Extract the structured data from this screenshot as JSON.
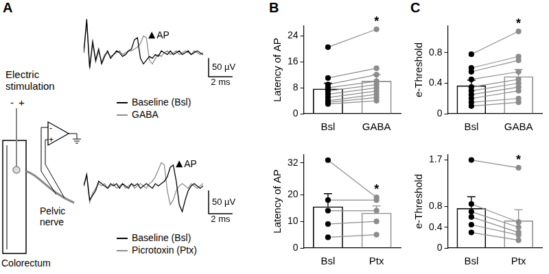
{
  "panel_labels": [
    "A",
    "B",
    "C"
  ],
  "diagram": {
    "stimulation_label": "Electric stimulation",
    "stimulation_polarity": [
      "-",
      "+"
    ],
    "amplifier_inputs": [
      "-",
      "+"
    ],
    "nerve_label": "Pelvic nerve",
    "organ_label": "Colorectum"
  },
  "chart_data": [
    {
      "type": "line",
      "x": [
        0,
        0.25,
        0.5,
        0.75,
        1,
        1.25,
        1.5,
        1.75,
        2,
        2.25,
        2.5,
        2.75,
        3,
        3.25,
        3.5,
        3.75,
        4,
        4.25,
        4.5,
        4.75,
        5,
        5.25,
        5.5,
        5.75,
        6,
        6.25,
        6.5,
        6.75,
        7,
        7.25,
        7.5,
        7.75,
        8,
        8.25,
        8.5,
        8.75,
        9,
        9.25,
        9.5,
        9.75,
        10
      ],
      "series": [
        {
          "name": "Baseline (Bsl)",
          "color": "#000000",
          "values": [
            0,
            90,
            -40,
            30,
            -20,
            10,
            -30,
            -10,
            5,
            -15,
            -5,
            5,
            0,
            -10,
            -5,
            5,
            10,
            35,
            40,
            -15,
            -30,
            -20,
            -10,
            -15,
            -5,
            -10,
            5,
            0,
            -5,
            5,
            -5,
            0,
            5,
            -5,
            0,
            5,
            -5,
            0,
            5,
            0,
            -5
          ]
        },
        {
          "name": "GABA",
          "color": "#8c8c8c",
          "values": [
            0,
            80,
            -45,
            25,
            -25,
            5,
            -25,
            -5,
            0,
            -10,
            -5,
            0,
            5,
            -5,
            0,
            5,
            5,
            10,
            15,
            25,
            45,
            40,
            -20,
            -30,
            -15,
            -5,
            -10,
            0,
            5,
            -5,
            0,
            5,
            -5,
            0,
            5,
            0,
            -5,
            5,
            0,
            -5,
            0
          ]
        }
      ],
      "xlim": [
        0,
        10
      ],
      "ylim": [
        -90,
        110
      ],
      "tick_labels": false,
      "grid": false,
      "annotations": [
        {
          "text": "AP",
          "x": 5.7,
          "y": 38
        }
      ],
      "scale_bar": {
        "x": 2,
        "x_label": "2 ms",
        "y": 50,
        "y_label": "50 µV"
      }
    },
    {
      "type": "line",
      "x": [
        0,
        0.25,
        0.5,
        0.75,
        1,
        1.25,
        1.5,
        1.75,
        2,
        2.25,
        2.5,
        2.75,
        3,
        3.25,
        3.5,
        3.75,
        4,
        4.25,
        4.5,
        4.75,
        5,
        5.25,
        5.5,
        5.75,
        6,
        6.25,
        6.5,
        6.75,
        7,
        7.25,
        7.5,
        7.75,
        8,
        8.25,
        8.5,
        8.75,
        9,
        9.25,
        9.5,
        9.75,
        10
      ],
      "series": [
        {
          "name": "Baseline (Bsl)",
          "color": "#000000",
          "values": [
            0,
            25,
            -30,
            -20,
            -10,
            10,
            5,
            0,
            -5,
            5,
            0,
            5,
            -5,
            5,
            0,
            -5,
            5,
            0,
            5,
            -5,
            0,
            5,
            0,
            -5,
            5,
            0,
            5,
            10,
            20,
            40,
            45,
            10,
            -40,
            -55,
            -30,
            -10,
            0,
            5,
            0,
            -5,
            0
          ]
        },
        {
          "name": "Picrotoxin (Ptx)",
          "color": "#8c8c8c",
          "values": [
            0,
            20,
            -35,
            -15,
            -5,
            5,
            0,
            5,
            -5,
            0,
            5,
            -5,
            0,
            5,
            -5,
            0,
            5,
            -5,
            0,
            5,
            0,
            -5,
            5,
            10,
            20,
            35,
            50,
            45,
            -10,
            -40,
            -30,
            -10,
            0,
            5,
            0,
            -5,
            5,
            0,
            -5,
            0,
            5
          ]
        }
      ],
      "xlim": [
        0,
        10
      ],
      "ylim": [
        -80,
        80
      ],
      "tick_labels": false,
      "grid": false,
      "annotations": [
        {
          "text": "AP",
          "x": 8.0,
          "y": 40
        }
      ],
      "scale_bar": {
        "x": 2,
        "x_label": "2 ms",
        "y": 50,
        "y_label": "50 µV"
      }
    },
    {
      "type": "bar",
      "y_label": "Latency of AP",
      "categories": [
        "Bsl",
        "GABA"
      ],
      "values": [
        7.7,
        10.1
      ],
      "errors": [
        1.7,
        2.0
      ],
      "paired_values": [
        [
          20.5,
          11,
          9,
          8,
          7,
          6,
          5,
          4,
          3.5,
          3
        ],
        [
          26,
          14,
          12,
          10,
          9,
          8,
          7,
          6,
          5,
          4
        ]
      ],
      "colors": [
        "#000000",
        "#8c8c8c"
      ],
      "ylim": [
        0,
        27
      ],
      "yticks": [
        0,
        8,
        16,
        24
      ],
      "grid": false,
      "annotations": [
        {
          "text": "*",
          "x": "GABA"
        }
      ]
    },
    {
      "type": "bar",
      "y_label": "Latency of AP",
      "categories": [
        "Bsl",
        "Ptx"
      ],
      "values": [
        15.6,
        13.2
      ],
      "errors": [
        4.8,
        2.6
      ],
      "paired_values": [
        [
          33,
          18,
          14,
          9,
          4
        ],
        [
          19,
          18,
          14,
          10,
          5
        ]
      ],
      "colors": [
        "#000000",
        "#8c8c8c"
      ],
      "ylim": [
        0,
        35
      ],
      "yticks": [
        0,
        10,
        20,
        32
      ],
      "grid": false,
      "annotations": [
        {
          "text": "*",
          "x": "Ptx"
        }
      ]
    },
    {
      "type": "bar",
      "y_label": "e-Threshold",
      "categories": [
        "Bsl",
        "GABA"
      ],
      "values": [
        0.37,
        0.49
      ],
      "errors": [
        0.07,
        0.09
      ],
      "paired_values": [
        [
          0.78,
          0.6,
          0.55,
          0.45,
          0.35,
          0.3,
          0.25,
          0.2,
          0.15,
          0.1
        ],
        [
          1.08,
          0.75,
          0.7,
          0.55,
          0.45,
          0.4,
          0.35,
          0.3,
          0.2,
          0.15
        ]
      ],
      "colors": [
        "#000000",
        "#8c8c8c"
      ],
      "ylim": [
        0,
        1.15
      ],
      "yticks": [
        0,
        0.4,
        0.8
      ],
      "grid": false,
      "annotations": [
        {
          "text": "*",
          "x": "GABA"
        }
      ]
    },
    {
      "type": "bar",
      "y_label": "e-Threshold",
      "categories": [
        "Bsl",
        "Ptx"
      ],
      "values": [
        0.77,
        0.53
      ],
      "errors": [
        0.22,
        0.21
      ],
      "paired_values": [
        [
          1.7,
          0.85,
          0.7,
          0.6,
          0.45,
          0.3
        ],
        [
          1.55,
          0.5,
          0.4,
          0.3,
          0.25,
          0.15
        ]
      ],
      "colors": [
        "#000000",
        "#8c8c8c"
      ],
      "ylim": [
        0,
        1.8
      ],
      "yticks": [
        0,
        0.4,
        0.8,
        1.7
      ],
      "grid": false,
      "annotations": [
        {
          "text": "*",
          "x": "Ptx"
        }
      ]
    }
  ]
}
